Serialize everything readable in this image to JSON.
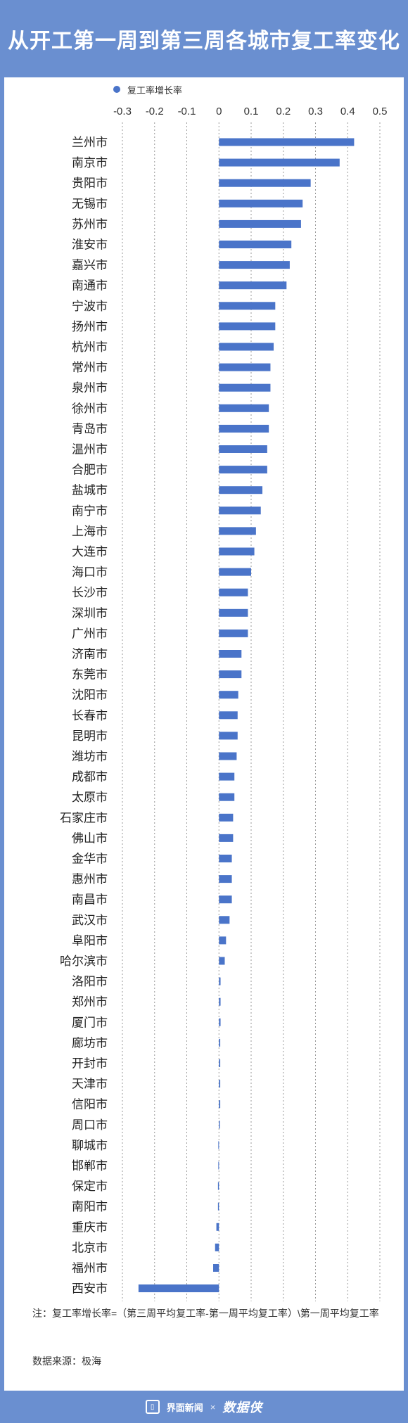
{
  "chart_data": {
    "type": "bar",
    "orientation": "horizontal",
    "title": "从开工第一周到第三周各城市复工率变化",
    "legend": {
      "entries": [
        "复工率增长率"
      ],
      "placement": "top"
    },
    "x_ticks": [
      "-0.3",
      "-0.2",
      "-0.1",
      "0",
      "0.1",
      "0.2",
      "0.3",
      "0.4",
      "0.5"
    ],
    "xlim": [
      -0.3,
      0.5
    ],
    "grid": true,
    "bar_color": "#4a74c9",
    "categories": [
      "兰州市",
      "南京市",
      "贵阳市",
      "无锡市",
      "苏州市",
      "淮安市",
      "嘉兴市",
      "南通市",
      "宁波市",
      "扬州市",
      "杭州市",
      "常州市",
      "泉州市",
      "徐州市",
      "青岛市",
      "温州市",
      "合肥市",
      "盐城市",
      "南宁市",
      "上海市",
      "大连市",
      "海口市",
      "长沙市",
      "深圳市",
      "广州市",
      "济南市",
      "东莞市",
      "沈阳市",
      "长春市",
      "昆明市",
      "潍坊市",
      "成都市",
      "太原市",
      "石家庄市",
      "佛山市",
      "金华市",
      "惠州市",
      "南昌市",
      "武汉市",
      "阜阳市",
      "哈尔滨市",
      "洛阳市",
      "郑州市",
      "厦门市",
      "廊坊市",
      "开封市",
      "天津市",
      "信阳市",
      "周口市",
      "聊城市",
      "邯郸市",
      "保定市",
      "南阳市",
      "重庆市",
      "北京市",
      "福州市",
      "西安市"
    ],
    "series": [
      {
        "name": "复工率增长率",
        "values": [
          0.42,
          0.375,
          0.285,
          0.26,
          0.255,
          0.225,
          0.22,
          0.21,
          0.175,
          0.175,
          0.17,
          0.16,
          0.16,
          0.155,
          0.155,
          0.15,
          0.15,
          0.135,
          0.13,
          0.115,
          0.11,
          0.1,
          0.09,
          0.09,
          0.09,
          0.07,
          0.07,
          0.06,
          0.058,
          0.058,
          0.055,
          0.048,
          0.048,
          0.044,
          0.044,
          0.04,
          0.04,
          0.04,
          0.033,
          0.022,
          0.018,
          0.005,
          0.005,
          0.005,
          0.004,
          0.004,
          0.004,
          0.004,
          0.003,
          -0.002,
          -0.002,
          -0.003,
          -0.003,
          -0.008,
          -0.012,
          -0.018,
          -0.25
        ]
      }
    ]
  },
  "note": "注：复工率增长率=（第三周平均复工率-第一周平均复工率）\\第一周平均复工率",
  "source": "数据来源：极海",
  "footer": {
    "brand1": "界面新闻",
    "separator": "×",
    "brand2": "数据侠"
  }
}
